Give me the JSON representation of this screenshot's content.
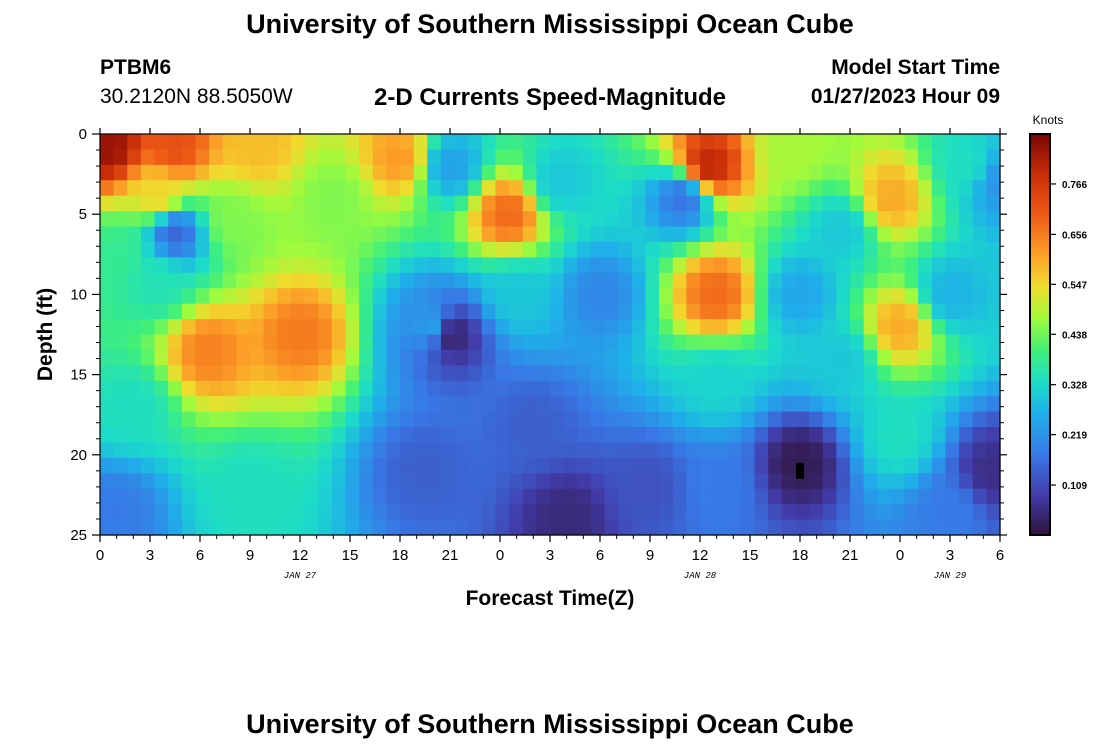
{
  "header": {
    "title": "University of Southern Mississippi Ocean Cube",
    "station_id": "PTBM6",
    "station_coords": "30.2120N  88.5050W",
    "chart_title": "2-D Currents Speed-Magnitude",
    "model_start_label": "Model Start Time",
    "model_start_value": "01/27/2023 Hour 09"
  },
  "footer": {
    "title": "University of Southern Mississippi Ocean Cube"
  },
  "chart_data": {
    "type": "heatmap",
    "title": "2-D Currents Speed-Magnitude",
    "xlabel": "Forecast Time(Z)",
    "ylabel": "Depth (ft)",
    "x_range_hours": [
      0,
      54
    ],
    "y_range_ft": [
      0,
      25
    ],
    "x_tick_labels": [
      "0",
      "3",
      "6",
      "9",
      "12",
      "15",
      "18",
      "21",
      "0",
      "3",
      "6",
      "9",
      "12",
      "15",
      "18",
      "21",
      "0",
      "3",
      "6"
    ],
    "y_tick_labels": [
      "0",
      "5",
      "10",
      "15",
      "20",
      "25"
    ],
    "date_labels": [
      {
        "label": "JAN 27",
        "hour": 12
      },
      {
        "label": "JAN 28",
        "hour": 36
      },
      {
        "label": "JAN 29",
        "hour": 51
      }
    ],
    "colorbar": {
      "units": "Knots",
      "min": 0.0,
      "max": 0.875,
      "tick_labels": [
        "0.766",
        "0.656",
        "0.547",
        "0.438",
        "0.328",
        "0.219",
        "0.109"
      ],
      "tick_values": [
        0.766,
        0.656,
        0.547,
        0.438,
        0.328,
        0.219,
        0.109
      ]
    },
    "features": [
      {
        "hour": 0.5,
        "depth": 0.8,
        "speed": 0.84
      },
      {
        "hour": 4.5,
        "depth": 0.8,
        "speed": 0.72
      },
      {
        "hour": 9.5,
        "depth": 0.8,
        "speed": 0.58
      },
      {
        "hour": 3.5,
        "depth": 3.8,
        "speed": 0.55
      },
      {
        "hour": 1.0,
        "depth": 7.5,
        "speed": 0.38
      },
      {
        "hour": 8.0,
        "depth": 5.5,
        "speed": 0.45
      },
      {
        "hour": 4.5,
        "depth": 6.2,
        "speed": 0.15
      },
      {
        "hour": 3.5,
        "depth": 9.2,
        "speed": 0.35
      },
      {
        "hour": 6.5,
        "depth": 13.5,
        "speed": 0.65
      },
      {
        "hour": 12.0,
        "depth": 12.5,
        "speed": 0.66
      },
      {
        "hour": 14.0,
        "depth": 4.0,
        "speed": 0.45
      },
      {
        "hour": 18.0,
        "depth": 1.5,
        "speed": 0.62
      },
      {
        "hour": 9.0,
        "depth": 22.0,
        "speed": 0.34
      },
      {
        "hour": 2.0,
        "depth": 17.0,
        "speed": 0.34
      },
      {
        "hour": 1.0,
        "depth": 23.5,
        "speed": 0.18
      },
      {
        "hour": 20.0,
        "depth": 12.0,
        "speed": 0.24
      },
      {
        "hour": 21.0,
        "depth": 2.0,
        "speed": 0.24
      },
      {
        "hour": 21.0,
        "depth": 12.5,
        "speed": 0.03
      },
      {
        "hour": 19.5,
        "depth": 21.0,
        "speed": 0.14
      },
      {
        "hour": 24.5,
        "depth": 5.0,
        "speed": 0.68
      },
      {
        "hour": 25.0,
        "depth": 10.0,
        "speed": 0.3
      },
      {
        "hour": 27.5,
        "depth": 3.0,
        "speed": 0.3
      },
      {
        "hour": 26.0,
        "depth": 18.0,
        "speed": 0.14
      },
      {
        "hour": 28.0,
        "depth": 24.0,
        "speed": 0.05
      },
      {
        "hour": 30.0,
        "depth": 10.0,
        "speed": 0.2
      },
      {
        "hour": 33.0,
        "depth": 22.0,
        "speed": 0.12
      },
      {
        "hour": 35.0,
        "depth": 4.0,
        "speed": 0.17
      },
      {
        "hour": 36.5,
        "depth": 2.0,
        "speed": 0.8
      },
      {
        "hour": 37.0,
        "depth": 10.0,
        "speed": 0.68
      },
      {
        "hour": 37.0,
        "depth": 15.5,
        "speed": 0.32
      },
      {
        "hour": 37.0,
        "depth": 22.0,
        "speed": 0.18
      },
      {
        "hour": 41.5,
        "depth": 1.0,
        "speed": 0.48
      },
      {
        "hour": 42.0,
        "depth": 10.0,
        "speed": 0.25
      },
      {
        "hour": 42.0,
        "depth": 20.5,
        "speed": 0.02
      },
      {
        "hour": 44.5,
        "depth": 14.0,
        "speed": 0.3
      },
      {
        "hour": 44.5,
        "depth": 6.0,
        "speed": 0.3
      },
      {
        "hour": 47.5,
        "depth": 4.0,
        "speed": 0.6
      },
      {
        "hour": 48.0,
        "depth": 12.0,
        "speed": 0.6
      },
      {
        "hour": 48.0,
        "depth": 19.0,
        "speed": 0.34
      },
      {
        "hour": 51.0,
        "depth": 10.0,
        "speed": 0.27
      },
      {
        "hour": 52.0,
        "depth": 2.0,
        "speed": 0.34
      },
      {
        "hour": 54.0,
        "depth": 3.0,
        "speed": 0.22
      },
      {
        "hour": 53.5,
        "depth": 21.0,
        "speed": 0.06
      },
      {
        "hour": 51.0,
        "depth": 23.5,
        "speed": 0.18
      }
    ],
    "flagged_cell": {
      "hour": 42.0,
      "depth": 21.0
    }
  }
}
